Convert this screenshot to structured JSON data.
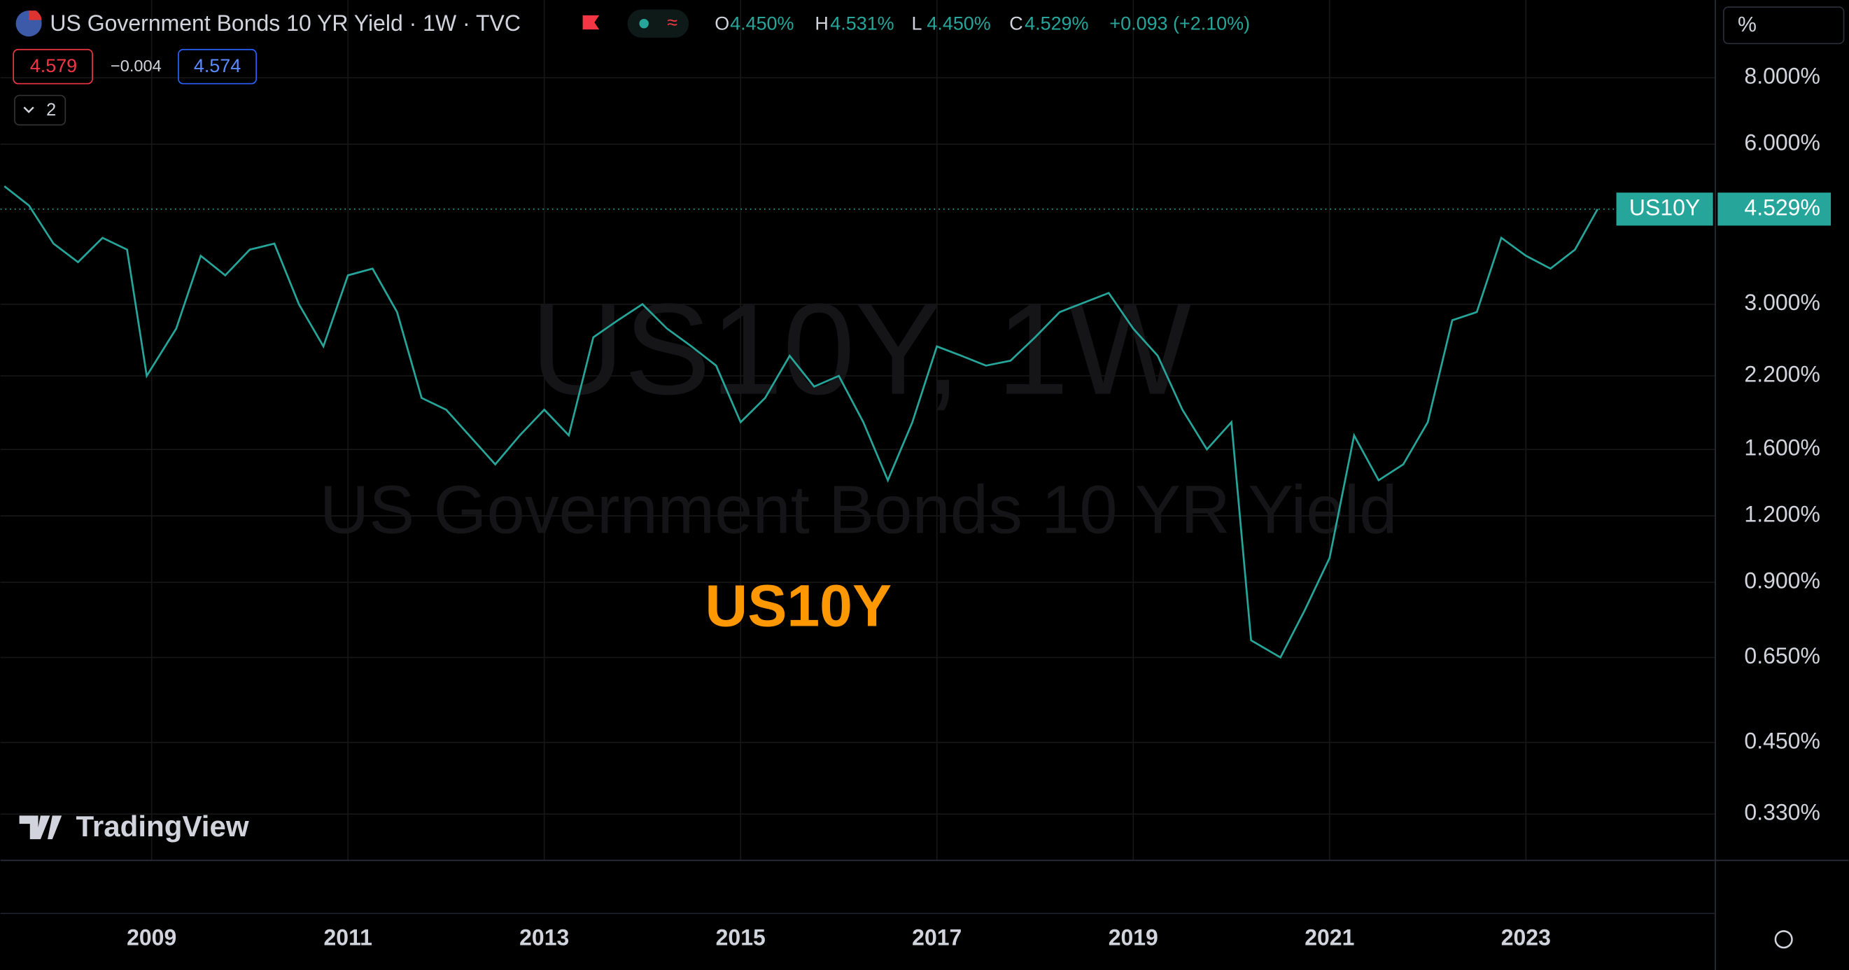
{
  "header": {
    "title": "US Government Bonds 10 YR Yield · 1W · TVC",
    "open_label": "O",
    "open": "4.450%",
    "high_label": "H",
    "high": "4.531%",
    "low_label": "L",
    "low": "4.450%",
    "close_label": "C",
    "close": "4.529%",
    "change": "+0.093 (+2.10%)",
    "bid": "4.579",
    "spread": "−0.004",
    "ask": "4.574",
    "indicators": "2"
  },
  "watermark": {
    "symbol": "US10Y, 1W",
    "description": "US Government Bonds 10 YR Yield"
  },
  "brand": "TradingView",
  "axis_unit": "%",
  "chart_data": {
    "type": "line",
    "annotation": "US10Y",
    "color": "#26a69a",
    "log_scale": true,
    "grid": true,
    "x": [
      2007.5,
      2007.75,
      2008.0,
      2008.25,
      2008.5,
      2008.75,
      2008.95,
      2009.25,
      2009.5,
      2009.75,
      2010.0,
      2010.25,
      2010.5,
      2010.75,
      2011.0,
      2011.25,
      2011.5,
      2011.75,
      2012.0,
      2012.5,
      2012.75,
      2013.0,
      2013.25,
      2013.5,
      2013.75,
      2014.0,
      2014.25,
      2014.5,
      2014.75,
      2015.0,
      2015.25,
      2015.5,
      2015.75,
      2016.0,
      2016.25,
      2016.5,
      2016.75,
      2017.0,
      2017.25,
      2017.5,
      2017.75,
      2018.0,
      2018.25,
      2018.75,
      2019.0,
      2019.25,
      2019.5,
      2019.75,
      2020.0,
      2020.2,
      2020.5,
      2020.75,
      2021.0,
      2021.25,
      2021.5,
      2021.75,
      2022.0,
      2022.25,
      2022.5,
      2022.75,
      2023.0,
      2023.25,
      2023.5,
      2023.73
    ],
    "values": [
      5.0,
      4.6,
      3.9,
      3.6,
      4.0,
      3.8,
      2.2,
      2.7,
      3.7,
      3.4,
      3.8,
      3.9,
      3.0,
      2.5,
      3.4,
      3.5,
      2.9,
      2.0,
      1.9,
      1.5,
      1.7,
      1.9,
      1.7,
      2.6,
      2.8,
      3.0,
      2.7,
      2.5,
      2.3,
      1.8,
      2.0,
      2.4,
      2.1,
      2.2,
      1.8,
      1.4,
      1.8,
      2.5,
      2.4,
      2.3,
      2.35,
      2.6,
      2.9,
      3.15,
      2.7,
      2.4,
      1.9,
      1.6,
      1.8,
      0.7,
      0.65,
      0.8,
      1.0,
      1.7,
      1.4,
      1.5,
      1.8,
      2.8,
      2.9,
      4.0,
      3.7,
      3.5,
      3.8,
      4.529
    ],
    "last_label": {
      "name": "US10Y",
      "value": "4.529%"
    },
    "xlim": [
      2007.46,
      2024.93
    ],
    "xticks": [
      2009,
      2011,
      2013,
      2015,
      2017,
      2019,
      2021,
      2023
    ],
    "ylim": [
      0.27,
      11.2
    ],
    "yticks": [
      {
        "value": 8,
        "label": "8.000%"
      },
      {
        "value": 6,
        "label": "6.000%"
      },
      {
        "value": 3,
        "label": "3.000%"
      },
      {
        "value": 2.2,
        "label": "2.200%"
      },
      {
        "value": 1.6,
        "label": "1.600%"
      },
      {
        "value": 1.2,
        "label": "1.200%"
      },
      {
        "value": 0.9,
        "label": "0.900%"
      },
      {
        "value": 0.65,
        "label": "0.650%"
      },
      {
        "value": 0.45,
        "label": "0.450%"
      },
      {
        "value": 0.33,
        "label": "0.330%"
      }
    ]
  }
}
